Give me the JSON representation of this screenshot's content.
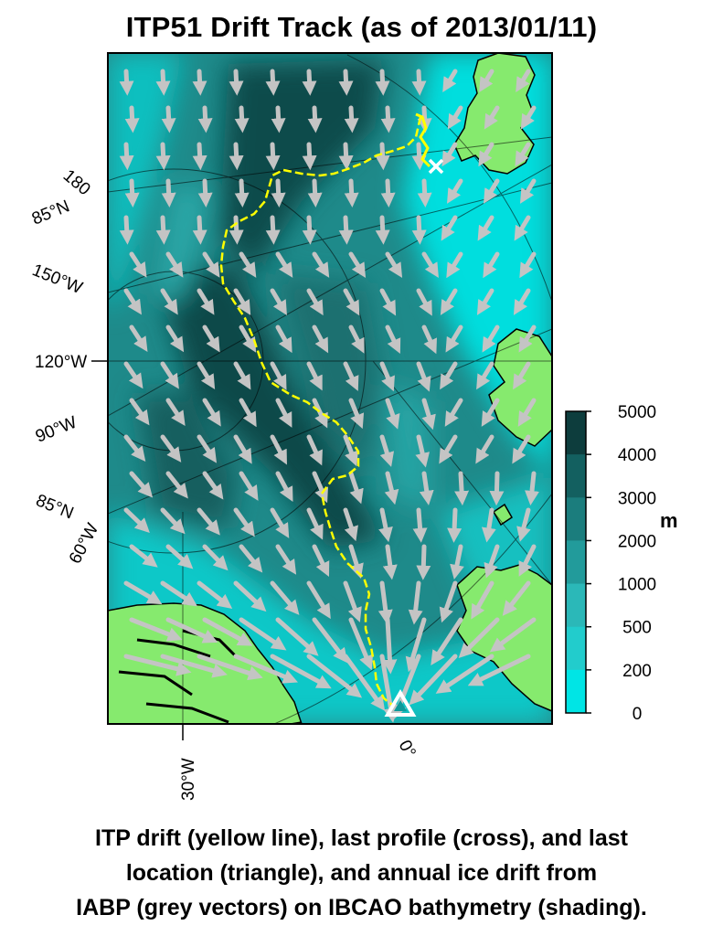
{
  "title": "ITP51 Drift Track (as of 2013/01/11)",
  "caption": {
    "lines": [
      "ITP drift (yellow line), last profile (cross), and last",
      "location (triangle), and annual ice drift from",
      "IABP (grey vectors) on IBCAO bathymetry (shading)."
    ]
  },
  "map": {
    "graticule_labels": {
      "lon_180": "180",
      "lat_85_upper": "85°N",
      "lon_150w": "150°W",
      "lon_120w": "120°W",
      "lon_90w": "90°W",
      "lat_85_lower": "85°N",
      "lon_60w": "60°W",
      "lon_30w": "30°W",
      "lon_0": "0°"
    },
    "markers": {
      "last_profile": "x",
      "last_location": "triangle"
    },
    "colors": {
      "shallow": "#00e5e5",
      "deep": "#0c4a4a",
      "land": "#86ea6e",
      "track": "#ffff00",
      "vectors": "#c4c4c4"
    }
  },
  "colorbar": {
    "unit": "m",
    "ticks": [
      "5000",
      "4000",
      "3000",
      "2000",
      "1000",
      "500",
      "200",
      "0"
    ],
    "colors": [
      "#0d3d3d",
      "#136060",
      "#1b7d7d",
      "#229b9b",
      "#2bb8b8",
      "#22cccc",
      "#00e5e5"
    ]
  }
}
